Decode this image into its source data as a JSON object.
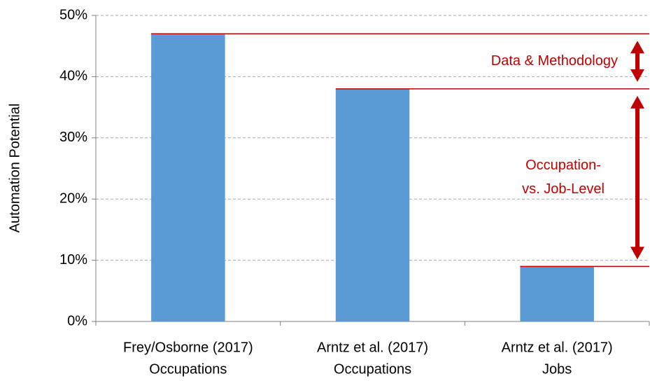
{
  "chart_data": {
    "type": "bar",
    "ylabel": "Automation Potential",
    "categories": [
      [
        "Frey/Osborne (2017)",
        "Occupations"
      ],
      [
        "Arntz et al. (2017)",
        "Occupations"
      ],
      [
        "Arntz et al. (2017)",
        "Jobs"
      ]
    ],
    "values": [
      47,
      38,
      9
    ],
    "color": "#5b9bd5",
    "ylim": [
      0,
      50
    ],
    "yticks": [
      {
        "value": 0,
        "label": "0%"
      },
      {
        "value": 10,
        "label": "10%"
      },
      {
        "value": 20,
        "label": "20%"
      },
      {
        "value": 30,
        "label": "30%"
      },
      {
        "value": 40,
        "label": "40%"
      },
      {
        "value": 50,
        "label": "50%"
      }
    ],
    "grid": true,
    "annotation_color": "#c00000",
    "annotations": [
      [
        "Data & Methodology"
      ],
      [
        "Occupation-",
        "vs. Job-Level"
      ]
    ]
  }
}
